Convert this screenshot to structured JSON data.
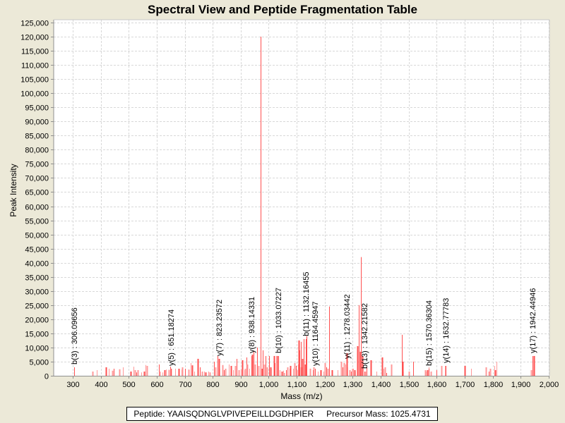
{
  "colors": {
    "peak": "#ff5050",
    "peak_light": "#ff9999",
    "background": "#ece9d8",
    "plot_bg": "#ffffff"
  },
  "footer": {
    "peptide_text": "Peptide: YAAISQDNGLVPIVEPEILLDGDHPIER",
    "precursor_text": "Precursor Mass: 1025.4731"
  },
  "chart_data": {
    "type": "bar",
    "title": "Spectral View and Peptide Fragmentation Table",
    "xlabel": "Mass (m/z)",
    "ylabel": "Peak Intensity",
    "xlim": [
      232,
      2003
    ],
    "ylim": [
      0,
      125000
    ],
    "grid": true,
    "x_ticks": [
      300,
      400,
      500,
      600,
      700,
      800,
      900,
      1000,
      1100,
      1200,
      1300,
      1400,
      1500,
      1600,
      1700,
      1800,
      1900,
      2000
    ],
    "x_tick_labels": [
      "300",
      "400",
      "500",
      "600",
      "700",
      "800",
      "900",
      "1,000",
      "1,100",
      "1,200",
      "1,300",
      "1,400",
      "1,500",
      "1,600",
      "1,700",
      "1,800",
      "1,900",
      "2,000"
    ],
    "y_ticks": [
      0,
      5000,
      10000,
      15000,
      20000,
      25000,
      30000,
      35000,
      40000,
      45000,
      50000,
      55000,
      60000,
      65000,
      70000,
      75000,
      80000,
      85000,
      90000,
      95000,
      100000,
      105000,
      110000,
      115000,
      120000,
      125000
    ],
    "y_tick_labels": [
      "0",
      "5,000",
      "10,000",
      "15,000",
      "20,000",
      "25,000",
      "30,000",
      "35,000",
      "40,000",
      "45,000",
      "50,000",
      "55,000",
      "60,000",
      "65,000",
      "70,000",
      "75,000",
      "80,000",
      "85,000",
      "90,000",
      "95,000",
      "100,000",
      "105,000",
      "110,000",
      "115,000",
      "120,000",
      "125,000"
    ],
    "annotations": [
      {
        "label": "b(3) : 306.09656",
        "x": 306.1,
        "y": 3000
      },
      {
        "label": "y(5) : 651.18274",
        "x": 651.2,
        "y": 2500
      },
      {
        "label": "y(7) : 823.23572",
        "x": 823.2,
        "y": 6000
      },
      {
        "label": "y(8) : 938.14331",
        "x": 938.1,
        "y": 7000
      },
      {
        "label": "b(10) : 1033.07227",
        "x": 1033.1,
        "y": 7000
      },
      {
        "label": "b(11) : 1132.16455",
        "x": 1132.2,
        "y": 13000
      },
      {
        "label": "y(10) : 1164.45947",
        "x": 1164.5,
        "y": 2500
      },
      {
        "label": "y(11) : 1278.03442",
        "x": 1278.0,
        "y": 5000
      },
      {
        "label": "b(13) : 1342.21582",
        "x": 1342.2,
        "y": 1500
      },
      {
        "label": "b(15) : 1570.36304",
        "x": 1570.4,
        "y": 2500
      },
      {
        "label": "y(14) : 1632.77783",
        "x": 1632.8,
        "y": 3500
      },
      {
        "label": "y(17) : 1942.44946",
        "x": 1942.4,
        "y": 7000
      }
    ],
    "peaks": [
      [
        306,
        3000
      ],
      [
        372,
        1500
      ],
      [
        386,
        2000
      ],
      [
        418,
        3000
      ],
      [
        429,
        2500
      ],
      [
        441,
        1800
      ],
      [
        446,
        2500
      ],
      [
        467,
        2300
      ],
      [
        478,
        3000
      ],
      [
        507,
        1500
      ],
      [
        517,
        3200
      ],
      [
        522,
        2000
      ],
      [
        527,
        1200
      ],
      [
        532,
        2000
      ],
      [
        546,
        1200
      ],
      [
        555,
        1500
      ],
      [
        560,
        3800
      ],
      [
        565,
        3500
      ],
      [
        607,
        4000
      ],
      [
        610,
        1500
      ],
      [
        620,
        1200
      ],
      [
        628,
        2000
      ],
      [
        633,
        2200
      ],
      [
        642,
        2100
      ],
      [
        647,
        3200
      ],
      [
        651,
        2500
      ],
      [
        666,
        2500
      ],
      [
        678,
        2500
      ],
      [
        688,
        2200
      ],
      [
        690,
        3000
      ],
      [
        700,
        2500
      ],
      [
        713,
        2200
      ],
      [
        722,
        4500
      ],
      [
        727,
        3700
      ],
      [
        734,
        1500
      ],
      [
        746,
        6000
      ],
      [
        755,
        3000
      ],
      [
        762,
        1500
      ],
      [
        770,
        1500
      ],
      [
        775,
        1200
      ],
      [
        785,
        1500
      ],
      [
        790,
        1200
      ],
      [
        805,
        5000
      ],
      [
        810,
        3000
      ],
      [
        818,
        7000
      ],
      [
        823,
        6000
      ],
      [
        826,
        2500
      ],
      [
        836,
        3800
      ],
      [
        841,
        2000
      ],
      [
        846,
        2500
      ],
      [
        858,
        4000
      ],
      [
        866,
        3500
      ],
      [
        872,
        2000
      ],
      [
        880,
        3500
      ],
      [
        885,
        6000
      ],
      [
        892,
        2000
      ],
      [
        900,
        2200
      ],
      [
        905,
        5500
      ],
      [
        912,
        2000
      ],
      [
        915,
        2500
      ],
      [
        920,
        6500
      ],
      [
        923,
        4000
      ],
      [
        931,
        2500
      ],
      [
        940,
        7500
      ],
      [
        945,
        8500
      ],
      [
        952,
        4000
      ],
      [
        958,
        10000
      ],
      [
        964,
        3500
      ],
      [
        972,
        120000
      ],
      [
        976,
        2500
      ],
      [
        980,
        9000
      ],
      [
        985,
        4000
      ],
      [
        990,
        7000
      ],
      [
        995,
        3000
      ],
      [
        1002,
        7000
      ],
      [
        1006,
        3000
      ],
      [
        1010,
        2500
      ],
      [
        1018,
        7000
      ],
      [
        1022,
        4500
      ],
      [
        1030,
        7000
      ],
      [
        1040,
        2000
      ],
      [
        1048,
        1500
      ],
      [
        1052,
        1800
      ],
      [
        1055,
        1000
      ],
      [
        1062,
        2000
      ],
      [
        1068,
        3000
      ],
      [
        1075,
        2500
      ],
      [
        1078,
        3500
      ],
      [
        1088,
        2500
      ],
      [
        1093,
        4500
      ],
      [
        1098,
        3500
      ],
      [
        1101,
        2000
      ],
      [
        1106,
        4000
      ],
      [
        1108,
        12500
      ],
      [
        1111,
        9000
      ],
      [
        1114,
        3000
      ],
      [
        1116,
        12000
      ],
      [
        1120,
        6000
      ],
      [
        1125,
        13000
      ],
      [
        1130,
        4000
      ],
      [
        1135,
        14000
      ],
      [
        1148,
        2500
      ],
      [
        1158,
        2000
      ],
      [
        1160,
        3000
      ],
      [
        1175,
        1500
      ],
      [
        1185,
        2000
      ],
      [
        1196,
        1500
      ],
      [
        1200,
        4500
      ],
      [
        1205,
        3000
      ],
      [
        1210,
        2500
      ],
      [
        1215,
        24500
      ],
      [
        1225,
        2000
      ],
      [
        1245,
        2000
      ],
      [
        1260,
        5000
      ],
      [
        1265,
        3000
      ],
      [
        1270,
        4500
      ],
      [
        1274,
        4000
      ],
      [
        1278,
        8000
      ],
      [
        1282,
        3000
      ],
      [
        1288,
        2000
      ],
      [
        1295,
        1500
      ],
      [
        1298,
        2500
      ],
      [
        1302,
        2500
      ],
      [
        1306,
        2000
      ],
      [
        1310,
        1500
      ],
      [
        1318,
        10500
      ],
      [
        1322,
        25000
      ],
      [
        1327,
        8500
      ],
      [
        1330,
        42000
      ],
      [
        1334,
        7000
      ],
      [
        1338,
        3000
      ],
      [
        1345,
        1500
      ],
      [
        1350,
        3000
      ],
      [
        1365,
        5500
      ],
      [
        1384,
        1500
      ],
      [
        1405,
        6500
      ],
      [
        1410,
        2500
      ],
      [
        1414,
        3000
      ],
      [
        1420,
        1000
      ],
      [
        1438,
        4000
      ],
      [
        1475,
        14500
      ],
      [
        1478,
        5000
      ],
      [
        1482,
        1500
      ],
      [
        1500,
        1500
      ],
      [
        1515,
        5000
      ],
      [
        1560,
        2000
      ],
      [
        1562,
        1500
      ],
      [
        1567,
        2000
      ],
      [
        1572,
        3000
      ],
      [
        1578,
        1500
      ],
      [
        1600,
        2000
      ],
      [
        1617,
        3500
      ],
      [
        1630,
        3500
      ],
      [
        1700,
        3500
      ],
      [
        1723,
        2500
      ],
      [
        1775,
        3000
      ],
      [
        1786,
        1500
      ],
      [
        1790,
        2500
      ],
      [
        1807,
        3500
      ],
      [
        1810,
        2000
      ],
      [
        1815,
        5000
      ],
      [
        1938,
        2000
      ],
      [
        1942,
        5000
      ],
      [
        1948,
        7000
      ]
    ]
  }
}
